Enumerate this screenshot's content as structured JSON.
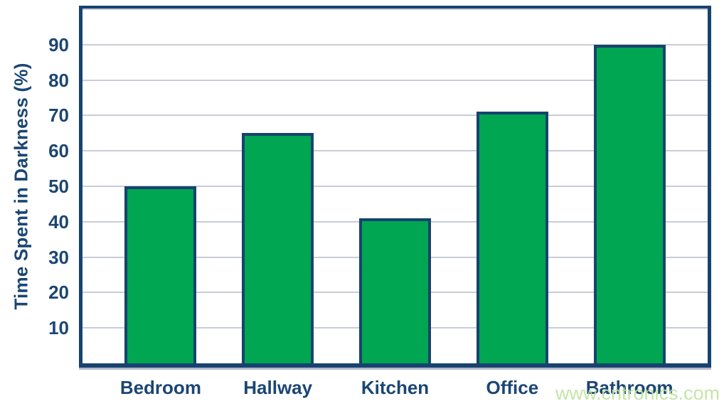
{
  "chart_data": {
    "type": "bar",
    "categories": [
      "Bedroom",
      "Hallway",
      "Kitchen",
      "Office",
      "Bathroom"
    ],
    "values": [
      50,
      65,
      41,
      71,
      90
    ],
    "title": "",
    "xlabel": "",
    "ylabel": "Time Spent in Darkness (%)",
    "ylim": [
      0,
      100
    ],
    "yticks": [
      10,
      20,
      30,
      40,
      50,
      60,
      70,
      80,
      90
    ],
    "grid": true,
    "legend": "none",
    "bar_color": "#00a651",
    "bar_border_color": "#17436f",
    "axis_color": "#17436f",
    "text_color": "#1b4673",
    "gridline_color": "#c9cdd9",
    "background_color": "#ffffff"
  },
  "watermark": {
    "text": "www.cntronics.com",
    "color": "#bfe3a0"
  }
}
